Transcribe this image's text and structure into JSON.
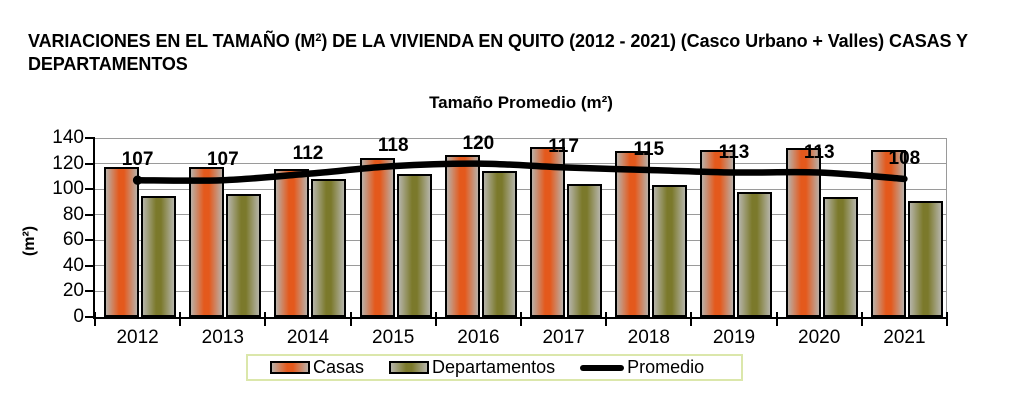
{
  "page_title": {
    "part1": "VARIACIONES EN EL TAMAÑO (M",
    "sup": "2",
    "part2": ") DE LA VIVIENDA EN QUITO (2012 - 2021) (Casco Urbano + Valles) CASAS Y DEPARTAMENTOS"
  },
  "chart_data": {
    "type": "bar",
    "title": "Tamaño Promedio (m²)",
    "ylabel": "(m²)",
    "xlabel": "",
    "categories": [
      "2012",
      "2013",
      "2014",
      "2015",
      "2016",
      "2017",
      "2018",
      "2019",
      "2020",
      "2021"
    ],
    "series": [
      {
        "name": "Casas",
        "type": "bar",
        "color_center": "#e4591c",
        "color_edge": "#b9b0a8",
        "values": [
          117,
          117,
          116,
          124,
          127,
          133,
          130,
          131,
          132,
          131
        ]
      },
      {
        "name": "Departamentos",
        "type": "bar",
        "color_center": "#7b792b",
        "color_edge": "#b5b4a9",
        "values": [
          95,
          96,
          108,
          112,
          114,
          104,
          103,
          98,
          94,
          91
        ]
      },
      {
        "name": "Promedio",
        "type": "line",
        "color": "#000000",
        "data_labels": true,
        "values": [
          107,
          107,
          112,
          118,
          120,
          117,
          115,
          113,
          113,
          108
        ]
      }
    ],
    "ylim": [
      0,
      140
    ],
    "yticks": [
      0,
      20,
      40,
      60,
      80,
      100,
      120,
      140
    ],
    "grid": true,
    "legend_position": "bottom"
  },
  "legend": {
    "items": [
      {
        "label": "Casas",
        "swatch": "bar-casas"
      },
      {
        "label": "Departamentos",
        "swatch": "bar-departamentos"
      },
      {
        "label": "Promedio",
        "swatch": "line"
      }
    ]
  },
  "colors": {
    "grid": "#9a9a9a",
    "axis": "#000000",
    "legend_border": "#dbe7ab",
    "background": "#ffffff"
  }
}
